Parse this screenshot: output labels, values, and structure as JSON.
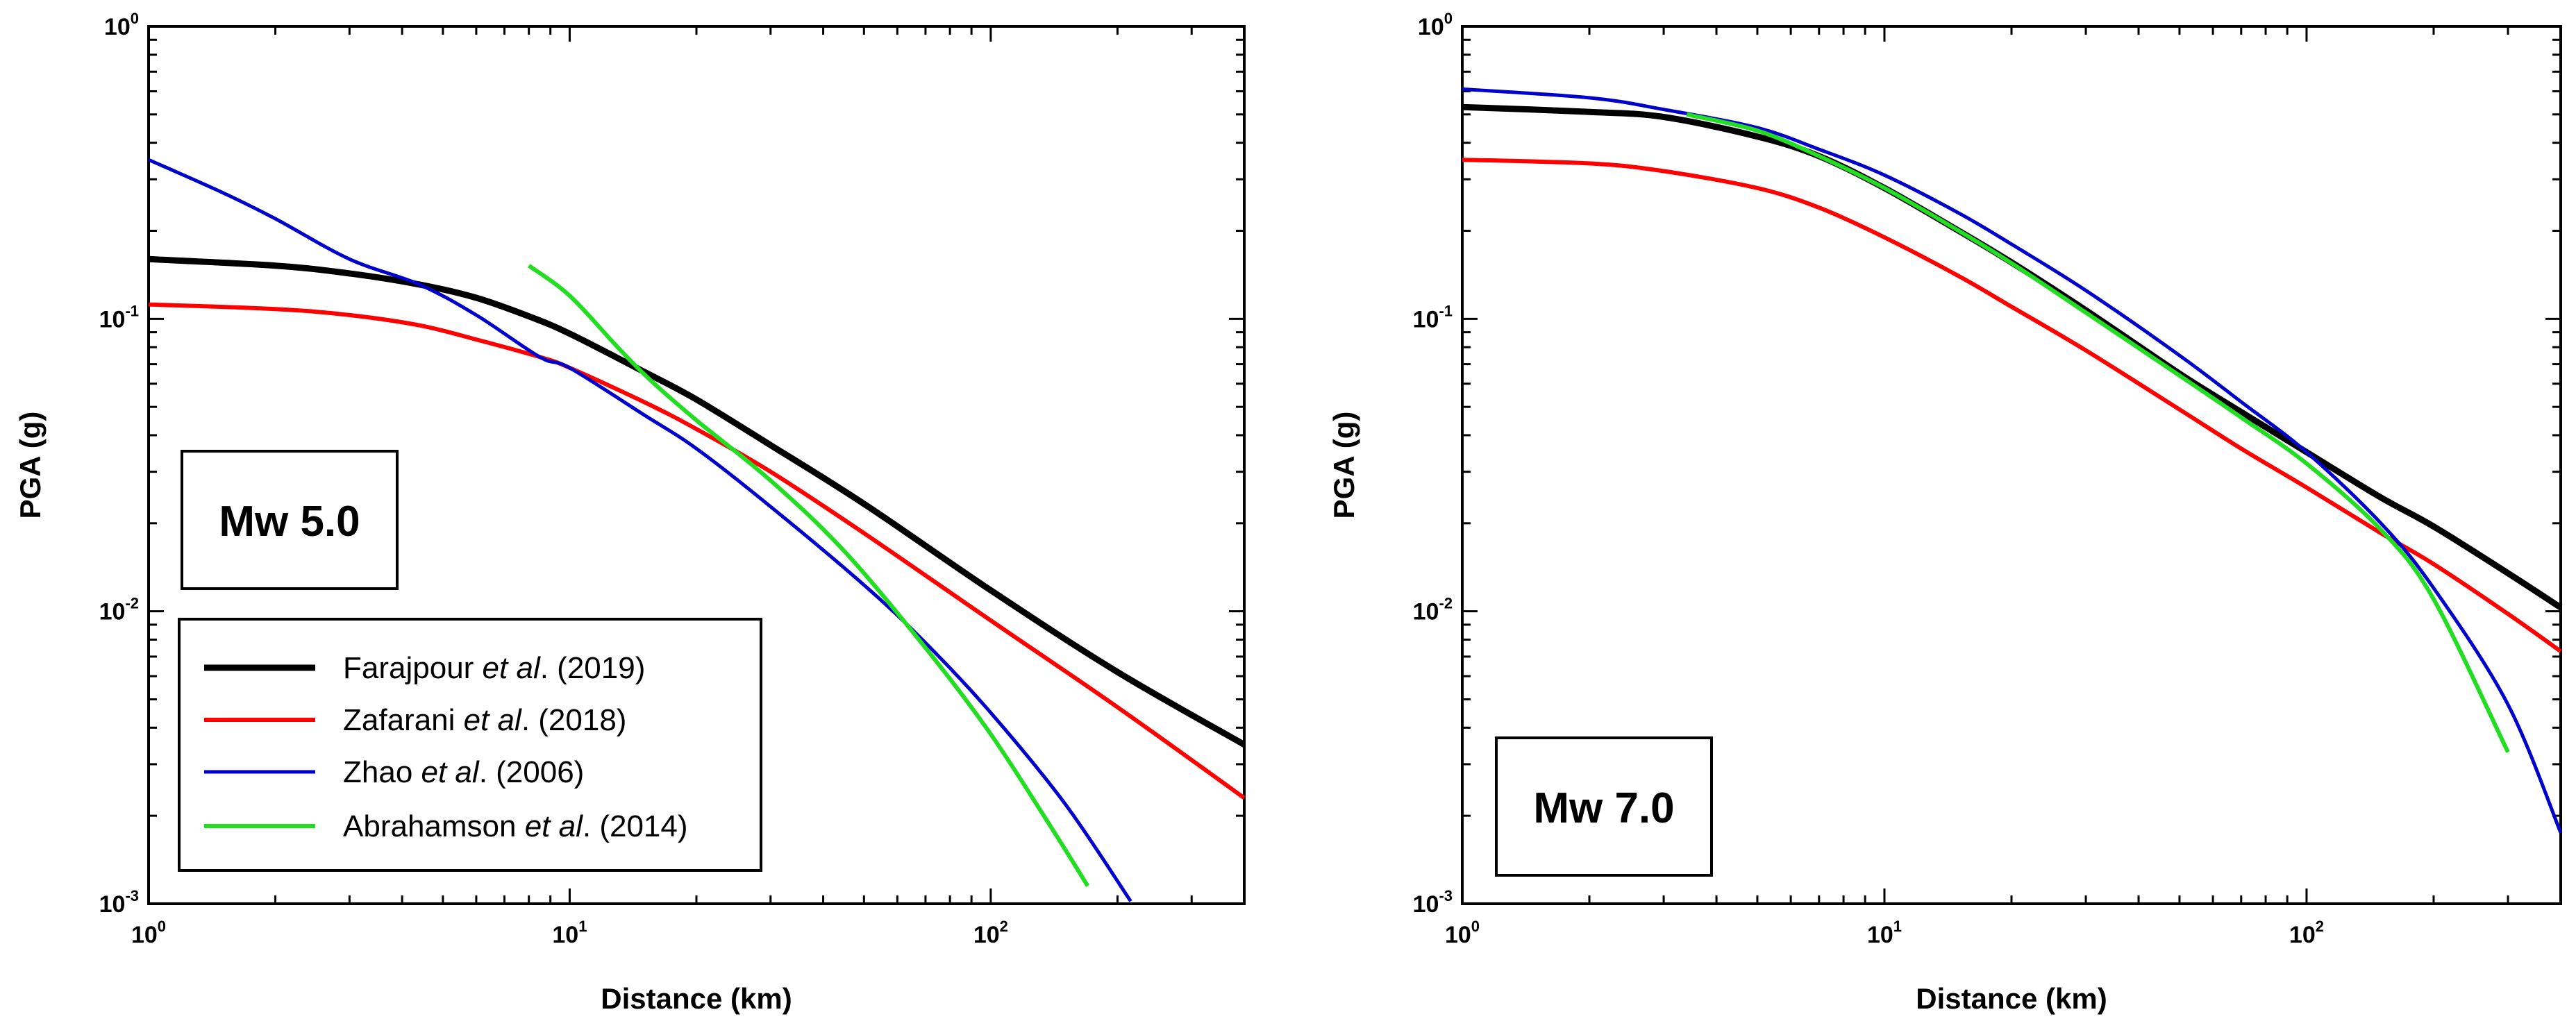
{
  "figure": {
    "shared_legend_panel": 0
  },
  "chart_data": [
    {
      "type": "line",
      "xscale": "log",
      "yscale": "log",
      "xlabel": "Distance (km)",
      "ylabel": "PGA (g)",
      "xlim": [
        1,
        400
      ],
      "ylim": [
        0.001,
        1
      ],
      "x_ticks": [
        {
          "value": 1,
          "base": "10",
          "exp": "0"
        },
        {
          "value": 10,
          "base": "10",
          "exp": "1"
        },
        {
          "value": 100,
          "base": "10",
          "exp": "2"
        }
      ],
      "y_ticks": [
        {
          "value": 0.001,
          "base": "10",
          "exp": "-3"
        },
        {
          "value": 0.01,
          "base": "10",
          "exp": "-2"
        },
        {
          "value": 0.1,
          "base": "10",
          "exp": "-1"
        },
        {
          "value": 1,
          "base": "10",
          "exp": "0"
        }
      ],
      "annotation": "Mw 5.0",
      "series": [
        {
          "name": "Farajpour et al. (2019)",
          "color": "#000000",
          "width": 9,
          "x": [
            1,
            2,
            3,
            4.4,
            6,
            8,
            10,
            15,
            20,
            30,
            50,
            100,
            200,
            400
          ],
          "y": [
            0.16,
            0.152,
            0.143,
            0.131,
            0.118,
            0.102,
            0.089,
            0.066,
            0.053,
            0.037,
            0.0233,
            0.0118,
            0.0062,
            0.0035
          ]
        },
        {
          "name": "Zafarani et al. (2018)",
          "color": "#ff0000",
          "width": 6,
          "x": [
            1,
            2,
            3,
            4.4,
            6,
            8.5,
            10,
            15,
            20,
            30,
            50,
            100,
            200,
            400
          ],
          "y": [
            0.112,
            0.108,
            0.103,
            0.095,
            0.085,
            0.074,
            0.068,
            0.052,
            0.042,
            0.03,
            0.0185,
            0.0093,
            0.0047,
            0.0023
          ]
        },
        {
          "name": "Zhao et al. (2006)",
          "color": "#0000cc",
          "width": 5,
          "x": [
            1,
            1.5,
            2,
            3,
            4.4,
            6,
            8.5,
            10,
            15,
            20,
            30,
            50,
            70,
            100,
            150,
            215
          ],
          "y": [
            0.35,
            0.27,
            0.22,
            0.16,
            0.131,
            0.103,
            0.074,
            0.068,
            0.047,
            0.036,
            0.0228,
            0.0123,
            0.0078,
            0.0045,
            0.0022,
            0.00102
          ]
        },
        {
          "name": "Abrahamson et al. (2014)",
          "color": "#22dd22",
          "width": 6,
          "x": [
            8,
            10,
            13,
            15.5,
            20,
            30,
            45,
            70,
            100,
            140,
            170
          ],
          "y": [
            0.152,
            0.12,
            0.08,
            0.062,
            0.045,
            0.028,
            0.016,
            0.0075,
            0.0038,
            0.0018,
            0.00115
          ]
        }
      ],
      "legend": {
        "placement": "bottom-left",
        "entries": [
          {
            "pre": "Farajpour ",
            "it": "et al",
            "post": ". (2019)",
            "color": "#000000",
            "width": 9
          },
          {
            "pre": "Zafarani ",
            "it": "et al",
            "post": ". (2018)",
            "color": "#ff0000",
            "width": 6
          },
          {
            "pre": "Zhao ",
            "it": "et al",
            "post": ". (2006)",
            "color": "#0000cc",
            "width": 5
          },
          {
            "pre": "Abrahamson ",
            "it": "et al",
            "post": ". (2014)",
            "color": "#22dd22",
            "width": 6
          }
        ]
      }
    },
    {
      "type": "line",
      "xscale": "log",
      "yscale": "log",
      "xlabel": "Distance (km)",
      "ylabel": "PGA (g)",
      "xlim": [
        1,
        400
      ],
      "ylim": [
        0.001,
        1
      ],
      "x_ticks": [
        {
          "value": 1,
          "base": "10",
          "exp": "0"
        },
        {
          "value": 10,
          "base": "10",
          "exp": "1"
        },
        {
          "value": 100,
          "base": "10",
          "exp": "2"
        }
      ],
      "y_ticks": [
        {
          "value": 0.001,
          "base": "10",
          "exp": "-3"
        },
        {
          "value": 0.01,
          "base": "10",
          "exp": "-2"
        },
        {
          "value": 0.1,
          "base": "10",
          "exp": "-1"
        },
        {
          "value": 1,
          "base": "10",
          "exp": "0"
        }
      ],
      "annotation": "Mw 7.0",
      "series": [
        {
          "name": "Farajpour et al. (2019)",
          "color": "#000000",
          "width": 9,
          "x": [
            1,
            2,
            3,
            5,
            7,
            10,
            15,
            20,
            30,
            50,
            70,
            100,
            150,
            200,
            300,
            400
          ],
          "y": [
            0.53,
            0.51,
            0.49,
            0.42,
            0.36,
            0.28,
            0.2,
            0.156,
            0.107,
            0.065,
            0.048,
            0.035,
            0.0245,
            0.0195,
            0.0135,
            0.0103
          ]
        },
        {
          "name": "Zafarani et al. (2018)",
          "color": "#ff0000",
          "width": 6,
          "x": [
            1,
            2,
            3,
            5,
            7,
            10,
            15,
            20,
            30,
            50,
            70,
            100,
            150,
            200,
            300,
            400
          ],
          "y": [
            0.35,
            0.34,
            0.32,
            0.28,
            0.24,
            0.19,
            0.14,
            0.11,
            0.078,
            0.049,
            0.036,
            0.0265,
            0.0185,
            0.0145,
            0.0098,
            0.0073
          ]
        },
        {
          "name": "Zhao et al. (2006)",
          "color": "#0000cc",
          "width": 5,
          "x": [
            1,
            2,
            3,
            5,
            7,
            10,
            15,
            20,
            30,
            50,
            70,
            100,
            150,
            200,
            300,
            400
          ],
          "y": [
            0.61,
            0.57,
            0.52,
            0.45,
            0.38,
            0.31,
            0.23,
            0.18,
            0.125,
            0.075,
            0.052,
            0.035,
            0.02,
            0.012,
            0.0048,
            0.00175
          ]
        },
        {
          "name": "Abrahamson et al. (2014)",
          "color": "#22dd22",
          "width": 6,
          "x": [
            3.4,
            5,
            7,
            10,
            15,
            20,
            30,
            50,
            70,
            100,
            150,
            200,
            300
          ],
          "y": [
            0.5,
            0.44,
            0.36,
            0.28,
            0.2,
            0.155,
            0.105,
            0.064,
            0.046,
            0.032,
            0.019,
            0.011,
            0.0033
          ]
        }
      ]
    }
  ]
}
